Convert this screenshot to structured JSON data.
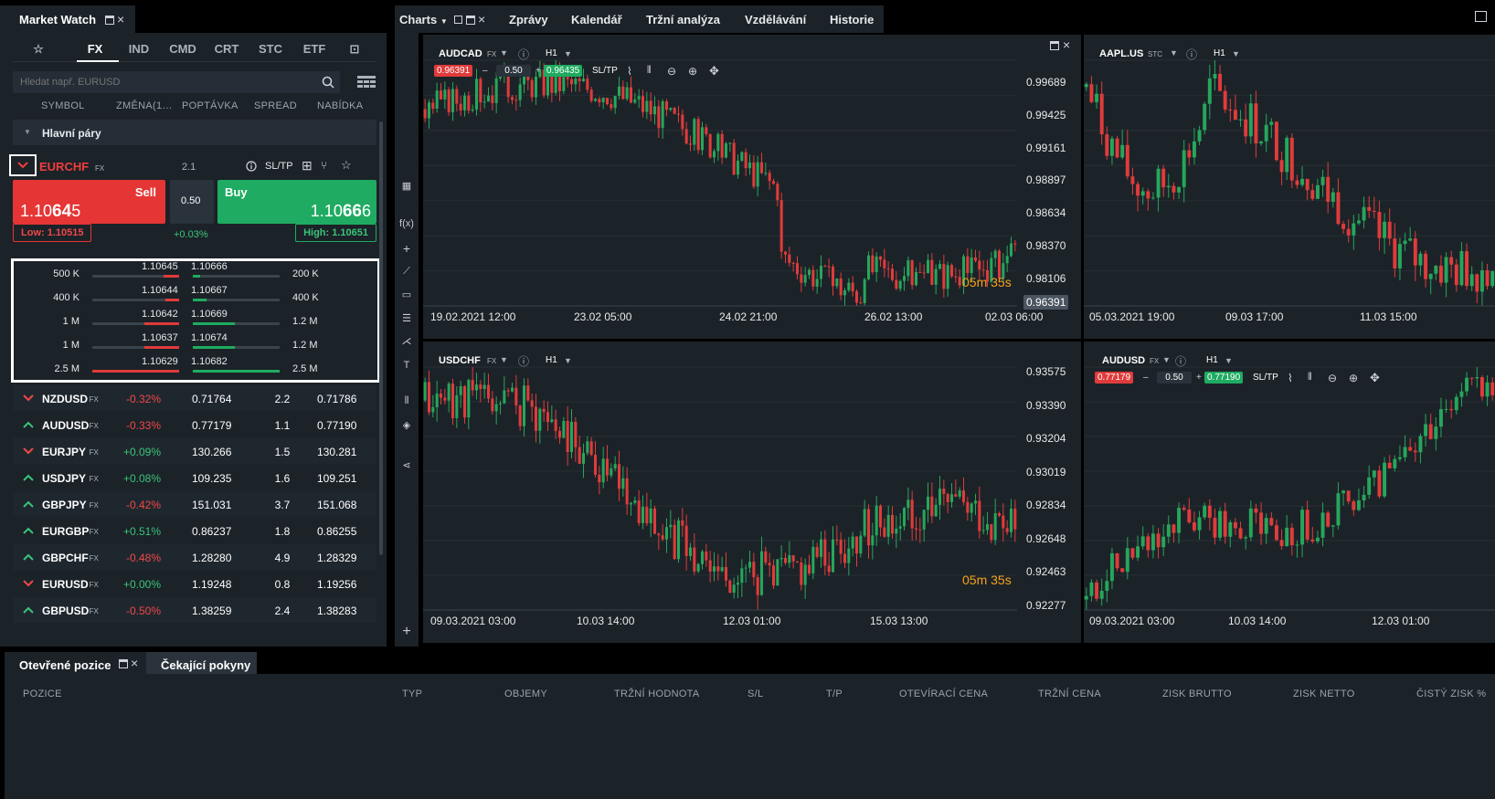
{
  "market_watch": {
    "title": "Market Watch",
    "categories": [
      "FX",
      "IND",
      "CMD",
      "CRT",
      "STC",
      "ETF"
    ],
    "active_category": "FX",
    "search_placeholder": "Hledat např. EURUSD",
    "columns": [
      "SYMBOL",
      "ZMĚNA(1…",
      "POPTÁVKA",
      "SPREAD",
      "NABÍDKA"
    ],
    "group": "Hlavní páry",
    "expanded": {
      "symbol": "EURCHF",
      "type": "FX",
      "spread": "2.1",
      "sltp": "SL/TP",
      "sell_label": "Sell",
      "sell_price_a": "1.10",
      "sell_price_b": "64",
      "sell_price_c": "5",
      "buy_label": "Buy",
      "buy_price_a": "1.10",
      "buy_price_b": "66",
      "buy_price_c": "6",
      "volume": "0.50",
      "change": "+0.03%",
      "low": "Low: 1.10515",
      "high": "High: 1.10651"
    },
    "depth": [
      {
        "bid_vol": "500 K",
        "bid": "1.10645",
        "ask": "1.10666",
        "ask_vol": "200 K",
        "bid_fill": 0.18,
        "ask_fill": 0.08
      },
      {
        "bid_vol": "400 K",
        "bid": "1.10644",
        "ask": "1.10667",
        "ask_vol": "400 K",
        "bid_fill": 0.16,
        "ask_fill": 0.16
      },
      {
        "bid_vol": "1 M",
        "bid": "1.10642",
        "ask": "1.10669",
        "ask_vol": "1.2 M",
        "bid_fill": 0.4,
        "ask_fill": 0.48
      },
      {
        "bid_vol": "1 M",
        "bid": "1.10637",
        "ask": "1.10674",
        "ask_vol": "1.2 M",
        "bid_fill": 0.4,
        "ask_fill": 0.48
      },
      {
        "bid_vol": "2.5 M",
        "bid": "1.10629",
        "ask": "1.10682",
        "ask_vol": "2.5 M",
        "bid_fill": 1.0,
        "ask_fill": 1.0
      }
    ],
    "rows": [
      {
        "symbol": "NZDUSD",
        "type": "FX",
        "dir": "down",
        "change": "-0.32%",
        "bid": "0.71764",
        "spread": "2.2",
        "ask": "0.71786"
      },
      {
        "symbol": "AUDUSD",
        "type": "FX",
        "dir": "up",
        "change": "-0.33%",
        "bid": "0.77179",
        "spread": "1.1",
        "ask": "0.77190"
      },
      {
        "symbol": "EURJPY",
        "type": "FX",
        "dir": "down",
        "change": "+0.09%",
        "bid": "130.266",
        "spread": "1.5",
        "ask": "130.281"
      },
      {
        "symbol": "USDJPY",
        "type": "FX",
        "dir": "up",
        "change": "+0.08%",
        "bid": "109.235",
        "spread": "1.6",
        "ask": "109.251"
      },
      {
        "symbol": "GBPJPY",
        "type": "FX",
        "dir": "up",
        "change": "-0.42%",
        "bid": "151.031",
        "spread": "3.7",
        "ask": "151.068"
      },
      {
        "symbol": "EURGBP",
        "type": "FX",
        "dir": "up",
        "change": "+0.51%",
        "bid": "0.86237",
        "spread": "1.8",
        "ask": "0.86255"
      },
      {
        "symbol": "GBPCHF",
        "type": "FX",
        "dir": "up",
        "change": "-0.48%",
        "bid": "1.28280",
        "spread": "4.9",
        "ask": "1.28329"
      },
      {
        "symbol": "EURUSD",
        "type": "FX",
        "dir": "down",
        "change": "+0.00%",
        "bid": "1.19248",
        "spread": "0.8",
        "ask": "1.19256"
      },
      {
        "symbol": "GBPUSD",
        "type": "FX",
        "dir": "up",
        "change": "-0.50%",
        "bid": "1.38259",
        "spread": "2.4",
        "ask": "1.38283"
      }
    ]
  },
  "top_tabs": [
    "Charts",
    "Zprávy",
    "Kalendář",
    "Tržní analýza",
    "Vzdělávání",
    "Historie"
  ],
  "charts": [
    {
      "symbol": "AUDCAD",
      "type": "FX",
      "timeframe": "H1",
      "sell": "0.96391",
      "buy": "0.96435",
      "volume": "0.50",
      "sltp": "SL/TP",
      "y_labels": [
        "0.99689",
        "0.99425",
        "0.99161",
        "0.98897",
        "0.98634",
        "0.98370",
        "0.98106"
      ],
      "x_labels": [
        "19.02.2021 12:00",
        "23.02 05:00",
        "24.02 21:00",
        "26.02 13:00",
        "02.03 06:00"
      ],
      "current": "0.96391",
      "timer_m": "05",
      "timer_s": "35",
      "seed": 3,
      "trend": "audcad"
    },
    {
      "symbol": "AAPL.US",
      "type": "STC",
      "timeframe": "H1",
      "x_labels": [
        "05.03.2021 19:00",
        "09.03 17:00",
        "11.03 15:00"
      ],
      "seed": 7,
      "trend": "aapl"
    },
    {
      "symbol": "USDCHF",
      "type": "FX",
      "timeframe": "H1",
      "y_labels": [
        "0.93575",
        "0.93390",
        "0.93204",
        "0.93019",
        "0.92834",
        "0.92648",
        "0.92463",
        "0.92277"
      ],
      "x_labels": [
        "09.03.2021 03:00",
        "10.03 14:00",
        "12.03 01:00",
        "15.03 13:00"
      ],
      "timer_m": "05",
      "timer_s": "35",
      "seed": 11,
      "trend": "usdchf"
    },
    {
      "symbol": "AUDUSD",
      "type": "FX",
      "timeframe": "H1",
      "sell": "0.77179",
      "buy": "0.77190",
      "volume": "0.50",
      "sltp": "SL/TP",
      "x_labels": [
        "09.03.2021 03:00",
        "10.03 14:00",
        "12.03 01:00"
      ],
      "seed": 19,
      "trend": "audusd"
    }
  ],
  "bottom": {
    "tabs": [
      "Otevřené pozice",
      "Čekající pokyny"
    ],
    "columns": [
      "POZICE",
      "TYP",
      "OBJEMY",
      "TRŽNÍ HODNOTA",
      "S/L",
      "T/P",
      "OTEVÍRACÍ CENA",
      "TRŽNÍ CENA",
      "ZISK BRUTTO",
      "ZISK NETTO",
      "ČISTÝ ZISK %"
    ]
  },
  "colors": {
    "up": "#26a65b",
    "down": "#e03b3b",
    "accent_timer": "#f7a21b"
  },
  "icons": [
    "star-icon",
    "screener-icon",
    "search-icon",
    "grid-view-icon",
    "chevron-down-icon",
    "info-icon",
    "sltp-icon",
    "crosshair-icon",
    "zoom-out-icon",
    "zoom-in-icon",
    "window-restore-icon",
    "close-icon"
  ]
}
